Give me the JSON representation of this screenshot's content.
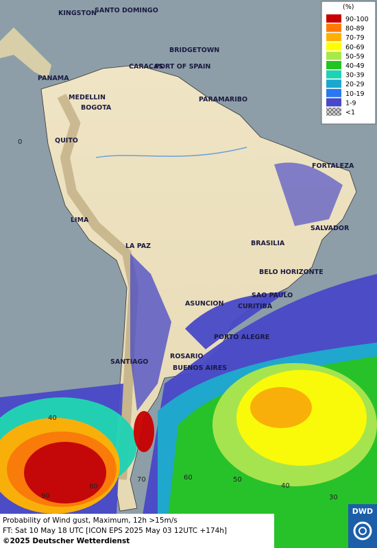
{
  "map": {
    "cities": [
      "KINGSTON",
      "SANTO DOMINGO",
      "BRIDGETOWN",
      "CARACAS",
      "PORT OF SPAIN",
      "PANAMA",
      "MEDELLIN",
      "BOGOTA",
      "PARAMARIBO",
      "QUITO",
      "FORTALEZA",
      "LIMA",
      "SALVADOR",
      "LA PAZ",
      "BRASILIA",
      "BELO HORIZONTE",
      "SAO PAULO",
      "ASUNCION",
      "CURITIBA",
      "PORTO ALEGRE",
      "ROSARIO",
      "BUENOS AIRES",
      "SANTIAGO"
    ],
    "grid_labels": [
      "0",
      "40",
      "60",
      "50",
      "40",
      "30",
      "70",
      "80",
      "90"
    ]
  },
  "legend": {
    "title": "(%)",
    "entries": [
      {
        "label": "90-100",
        "color": "#c80000"
      },
      {
        "label": "80-89",
        "color": "#ff7a00"
      },
      {
        "label": "70-79",
        "color": "#ffb000"
      },
      {
        "label": "60-69",
        "color": "#ffff00"
      },
      {
        "label": "50-59",
        "color": "#a8e84a"
      },
      {
        "label": "40-49",
        "color": "#22c422"
      },
      {
        "label": "30-39",
        "color": "#1ed2b4"
      },
      {
        "label": "20-29",
        "color": "#1aa8d0"
      },
      {
        "label": "10-19",
        "color": "#2878f0"
      },
      {
        "label": "1-9",
        "color": "#4848c8"
      },
      {
        "label": "<1",
        "color": "#a0a0a0"
      }
    ]
  },
  "footer": {
    "lines": [
      "Probability of Wind gust, Maximum, 12h >15m/s",
      "FT: Sat 10 May 18 UTC [ICON EPS 2025 May 03 12UTC +174h]",
      "©2025 Deutscher Wetterdienst"
    ]
  },
  "logo": "DWD"
}
